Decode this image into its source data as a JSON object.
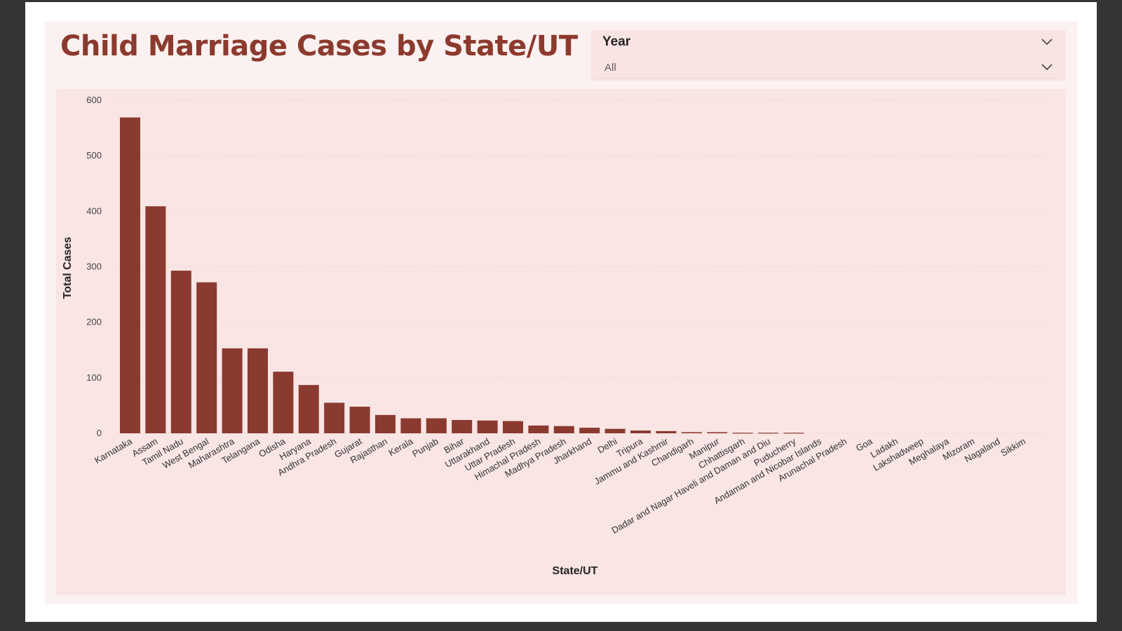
{
  "report": {
    "title": "Child Marriage Cases by State/UT"
  },
  "slicer": {
    "label": "Year",
    "value": "All",
    "header_chevron_icon": "chevron-down-icon",
    "dropdown_chevron_icon": "chevron-down-icon"
  },
  "colors": {
    "bar": "#8b3a2f",
    "title": "#8c3a2e",
    "panel": "#f8e5e4",
    "page": "#fbf1f0"
  },
  "chart_data": {
    "type": "bar",
    "xlabel": "State/UT",
    "ylabel": "Total Cases",
    "ylim": [
      0,
      600
    ],
    "yticks": [
      0,
      100,
      200,
      300,
      400,
      500,
      600
    ],
    "grid": true,
    "categories": [
      "Karnataka",
      "Assam",
      "Tamil Nadu",
      "West Bengal",
      "Maharashtra",
      "Telangana",
      "Odisha",
      "Haryana",
      "Andhra Pradesh",
      "Gujarat",
      "Rajasthan",
      "Kerala",
      "Punjab",
      "Bihar",
      "Uttarakhand",
      "Uttar Pradesh",
      "Himachal Pradesh",
      "Madhya Pradesh",
      "Jharkhand",
      "Delhi",
      "Tripura",
      "Jammu and Kashmir",
      "Chandigarh",
      "Manipur",
      "Chhattisgarh",
      "Dadar and Nagar Haveli and Daman and Diu",
      "Puducherry",
      "Andaman and Nicobar Islands",
      "Arunachal Pradesh",
      "Goa",
      "Ladakh",
      "Lakshadweep",
      "Meghalaya",
      "Mizoram",
      "Nagaland",
      "Sikkim"
    ],
    "values": [
      569,
      409,
      293,
      272,
      153,
      153,
      111,
      87,
      55,
      48,
      33,
      27,
      27,
      24,
      23,
      22,
      14,
      13,
      10,
      8,
      5,
      4,
      2,
      2,
      1,
      1,
      1,
      0,
      0,
      0,
      0,
      0,
      0,
      0,
      0,
      0
    ]
  }
}
